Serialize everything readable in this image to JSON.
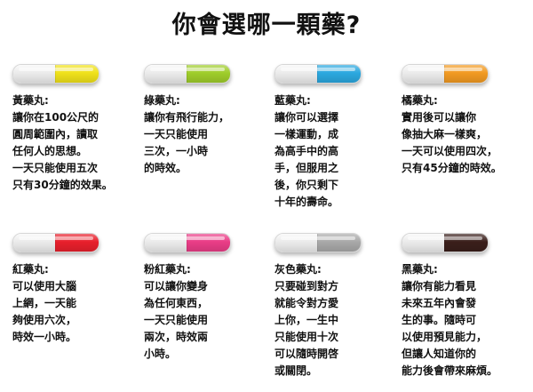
{
  "title": "你會選哪一顆藥?",
  "pills": [
    {
      "name": "黃藥丸:",
      "color": "#f0e21a",
      "desc": "讓你在100公尺的\n圓周範圍內，讀取\n任何人的思想。\n一天只能使用五次\n只有30分鐘的效果。"
    },
    {
      "name": "綠藥丸:",
      "color": "#9fcd2a",
      "desc": "讓你有飛行能力，\n一天只能使用\n三次，一小時\n的時效。"
    },
    {
      "name": "藍藥丸:",
      "color": "#2ba8df",
      "desc": "讓你可以選擇\n一樣運動，成\n為高手中的高\n手，但服用之\n後，你只剩下\n十年的壽命。"
    },
    {
      "name": "橘藥丸:",
      "color": "#f29a22",
      "desc": "實用後可以讓你\n像抽大麻一樣爽，\n一天可以使用四次，\n只有45分鐘的時效。"
    },
    {
      "name": "紅藥丸:",
      "color": "#e8202c",
      "desc": "可以使用大腦\n上網，一天能\n夠使用六次，\n時效一小時。"
    },
    {
      "name": "粉紅藥丸:",
      "color": "#ea3d87",
      "desc": "可以讓你變身\n為任何東西，\n一天只能使用\n兩次，時效兩\n小時。"
    },
    {
      "name": "灰色藥丸:",
      "color": "#a9a9a9",
      "desc": "只要碰到對方\n就能令對方愛\n上你，一生中\n只能使用十次\n可以隨時開啓\n或關閉。"
    },
    {
      "name": "黑藥丸:",
      "color": "#3a1f1b",
      "desc": "讓你有能力看見\n未來五年內會發\n生的事。隨時可\n以使用預見能力，\n但讓人知道你的\n能力後會帶來麻煩。"
    }
  ]
}
